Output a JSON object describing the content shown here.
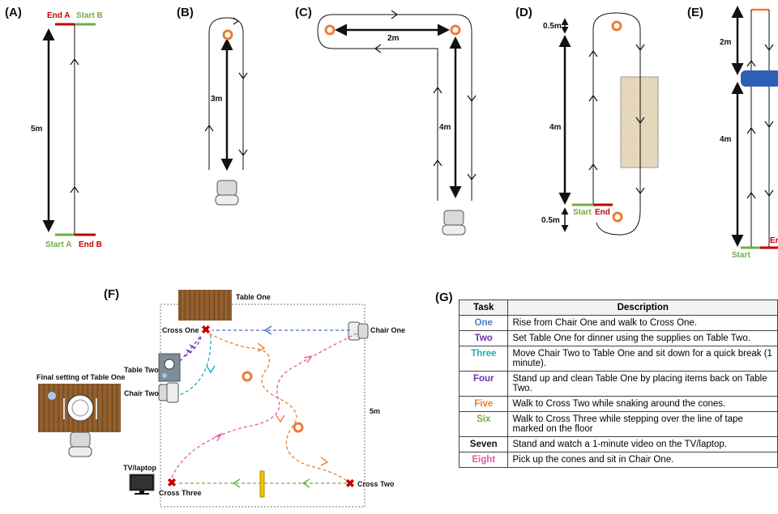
{
  "panels": {
    "A": {
      "label": "(A)",
      "end_a": "End A",
      "start_b": "Start B",
      "start_a": "Start A",
      "end_b": "End B",
      "distance": "5m"
    },
    "B": {
      "label": "(B)",
      "distance": "3m"
    },
    "C": {
      "label": "(C)",
      "distance_h": "2m",
      "distance_v": "4m"
    },
    "D": {
      "label": "(D)",
      "top_gap": "0.5m",
      "main": "4m",
      "bottom_gap": "0.5m",
      "start": "Start",
      "end": "End"
    },
    "E": {
      "label": "(E)",
      "top": "2m",
      "main": "4m",
      "start": "Start",
      "end_partial": "En"
    },
    "F": {
      "label": "(F)",
      "table_one": "Table One",
      "chair_one": "Chair One",
      "cross_one": "Cross One",
      "table_two": "Table Two",
      "chair_two": "Chair Two",
      "final_setting": "Final setting of Table One",
      "tv": "TV/laptop",
      "cross_two": "Cross Two",
      "cross_three": "Cross Three",
      "distance": "5m"
    },
    "G": {
      "label": "(G)",
      "header_task": "Task",
      "header_desc": "Description",
      "rows": [
        {
          "task": "One",
          "color": "#4a7fc1",
          "desc": "Rise from Chair One and walk to Cross One."
        },
        {
          "task": "Two",
          "color": "#7030a0",
          "desc": "Set Table One for dinner using the supplies on Table Two."
        },
        {
          "task": "Three",
          "color": "#1aaeb5",
          "desc": "Move Chair Two to Table One and sit down for a quick break (1 minute)."
        },
        {
          "task": "Four",
          "color": "#7030a0",
          "desc": "Stand up and clean Table One by placing items back on Table Two."
        },
        {
          "task": "Five",
          "color": "#ed7d31",
          "desc": "Walk to Cross Two while snaking around the cones."
        },
        {
          "task": "Six",
          "color": "#70ad47",
          "desc": "Walk to Cross Three while stepping over the line of tape marked on the floor"
        },
        {
          "task": "Seven",
          "color": "#111111",
          "desc": "Stand and watch a 1-minute video on the TV/laptop."
        },
        {
          "task": "Eight",
          "color": "#e55ba0",
          "desc": "Pick up the cones and sit in Chair One."
        }
      ]
    }
  },
  "colors": {
    "red": "#c00000",
    "green": "#70ad47",
    "orange": "#ed7d31",
    "blue": "#4472c4",
    "purple": "#7030a0",
    "teal": "#1aaeb5",
    "pink": "#e55ba0",
    "wood": "#8b5a2b"
  }
}
